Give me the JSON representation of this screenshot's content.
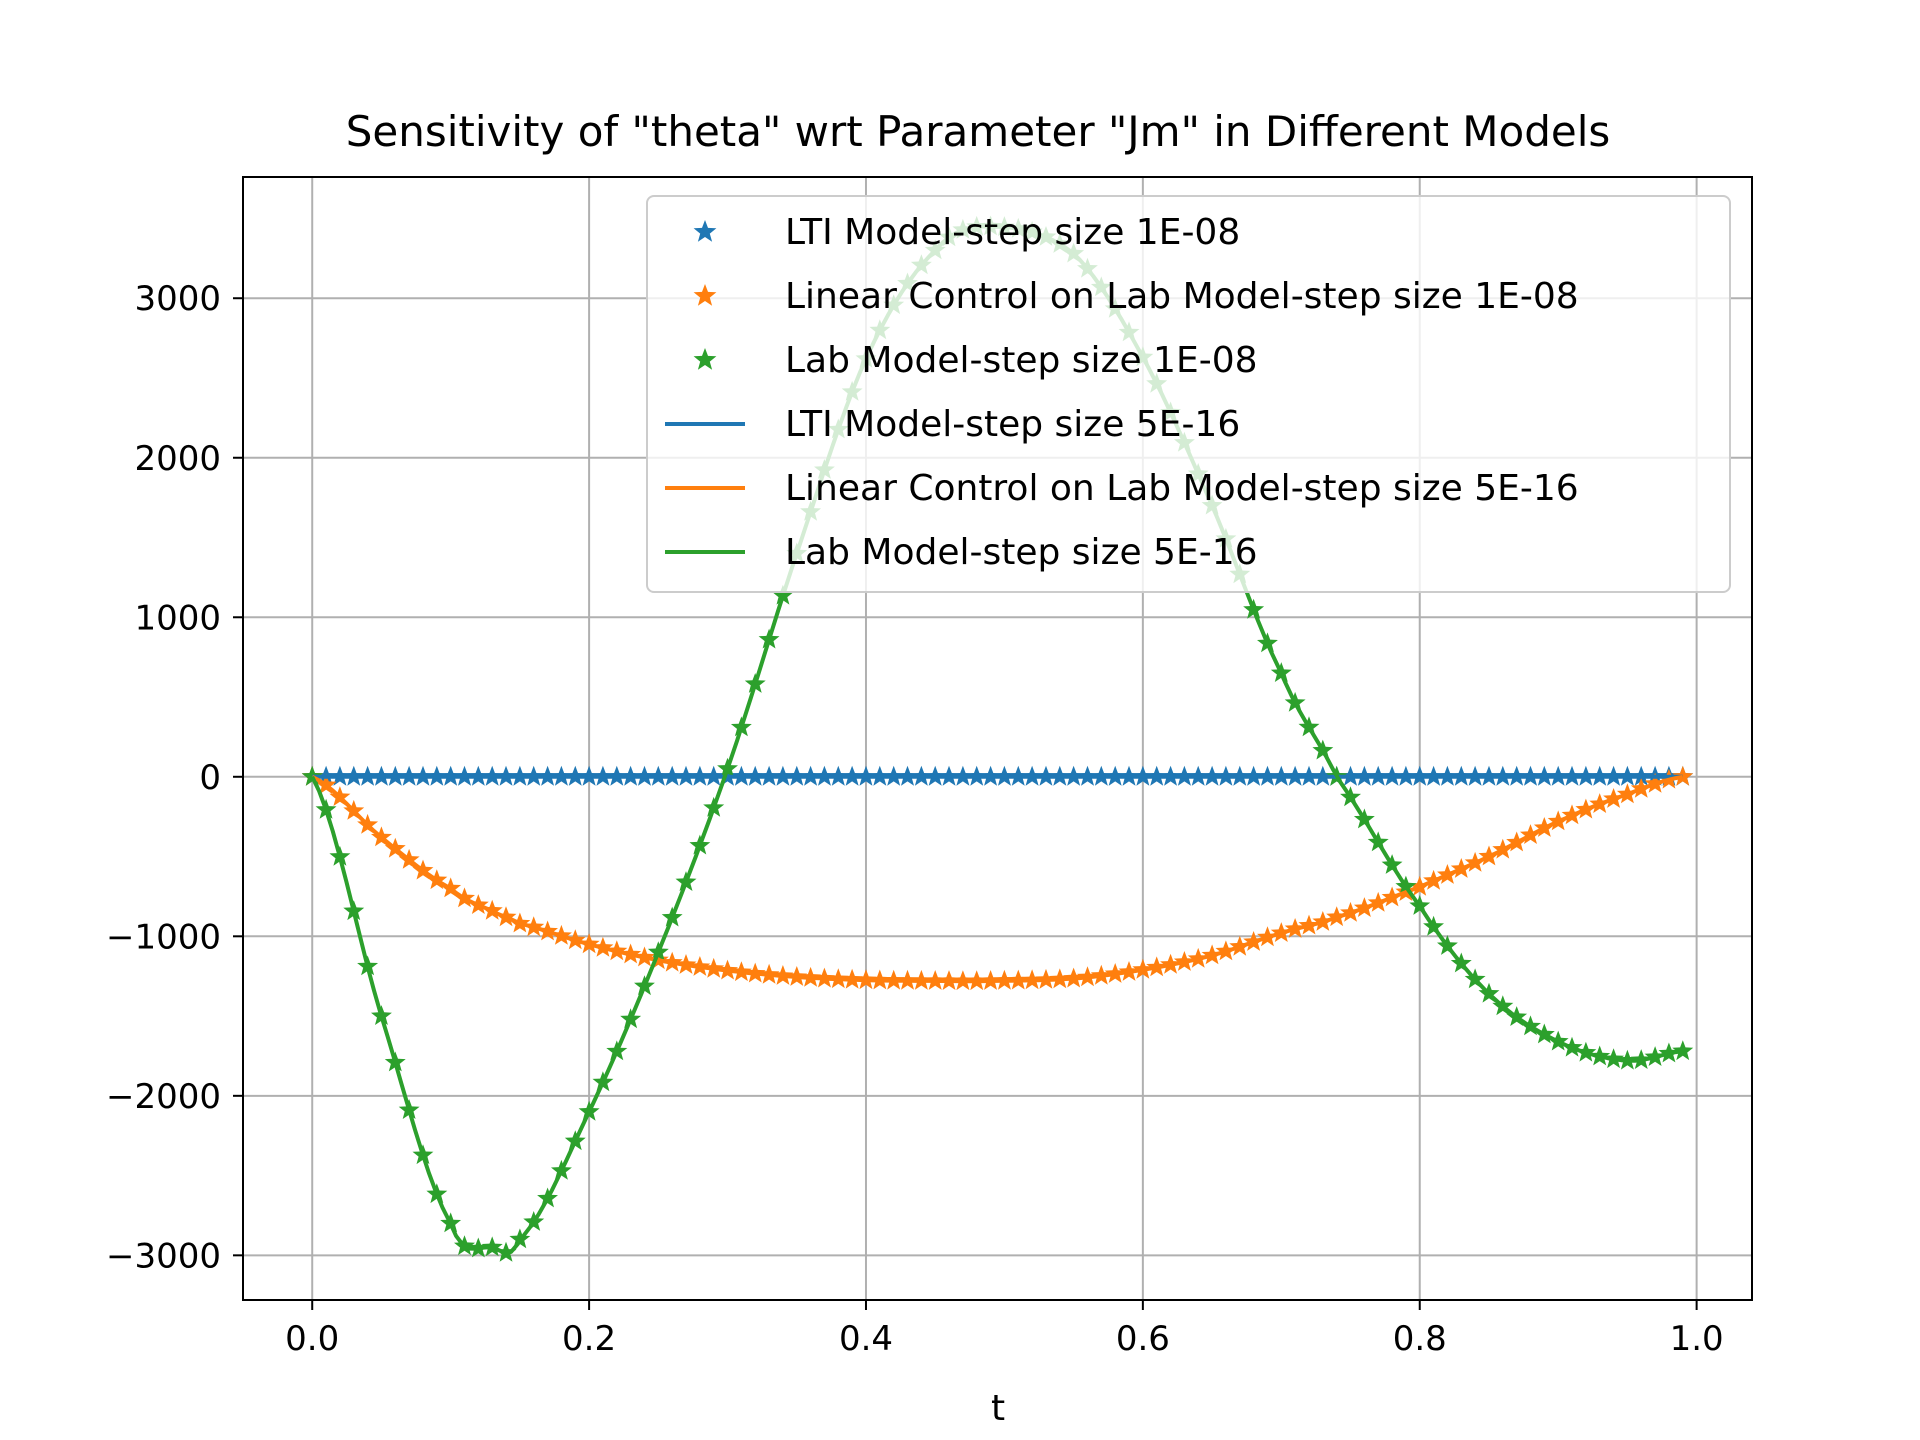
{
  "chart_data": {
    "type": "line",
    "title": "Sensitivity of \"theta\" wrt Parameter \"Jm\" in Different Models",
    "xlabel": "t",
    "ylabel": "",
    "xlim": [
      -0.05,
      1.04
    ],
    "ylim": [
      -3280,
      3760
    ],
    "grid": true,
    "legend_position": "top-right",
    "x_ticks": [
      0.0,
      0.2,
      0.4,
      0.6,
      0.8,
      1.0
    ],
    "x_tick_labels": [
      "0.0",
      "0.2",
      "0.4",
      "0.6",
      "0.8",
      "1.0"
    ],
    "y_ticks": [
      3000,
      2000,
      1000,
      0,
      -1000,
      -2000,
      -3000
    ],
    "y_tick_labels": [
      "3000",
      "2000",
      "1000",
      "0",
      "−1000",
      "−2000",
      "−3000"
    ],
    "x": [
      0.0,
      0.05,
      0.1,
      0.13,
      0.15,
      0.2,
      0.25,
      0.3,
      0.35,
      0.4,
      0.45,
      0.49,
      0.55,
      0.6,
      0.65,
      0.7,
      0.74,
      0.8,
      0.85,
      0.9,
      0.95,
      0.99
    ],
    "series": [
      {
        "name": "LTI Model-step size 1E-08",
        "style": "markers",
        "color": "#1f77b4",
        "values": [
          0,
          0,
          0,
          0,
          0,
          0,
          0,
          0,
          0,
          0,
          0,
          0,
          0,
          0,
          0,
          0,
          0,
          0,
          0,
          0,
          0,
          0
        ]
      },
      {
        "name": "Linear Control on Lab Model-step size 1E-08",
        "style": "markers",
        "color": "#ff7f0e",
        "values": [
          0,
          -380,
          -700,
          -840,
          -920,
          -1050,
          -1150,
          -1215,
          -1255,
          -1275,
          -1280,
          -1280,
          -1265,
          -1210,
          -1120,
          -980,
          -880,
          -690,
          -500,
          -280,
          -110,
          0
        ]
      },
      {
        "name": "Lab Model-step size 1E-08",
        "style": "markers",
        "color": "#2ca02c",
        "values": [
          0,
          -1500,
          -2800,
          -2950,
          -2900,
          -2100,
          -1100,
          50,
          1400,
          2620,
          3300,
          3450,
          3280,
          2630,
          1700,
          650,
          0,
          -810,
          -1360,
          -1660,
          -1780,
          -1720
        ]
      },
      {
        "name": "LTI Model-step size 5E-16",
        "style": "line",
        "color": "#1f77b4",
        "values": [
          0,
          0,
          0,
          0,
          0,
          0,
          0,
          0,
          0,
          0,
          0,
          0,
          0,
          0,
          0,
          0,
          0,
          0,
          0,
          0,
          0,
          0
        ]
      },
      {
        "name": "Linear Control on Lab Model-step size 5E-16",
        "style": "line",
        "color": "#ff7f0e",
        "values": [
          0,
          -380,
          -700,
          -840,
          -920,
          -1050,
          -1150,
          -1215,
          -1255,
          -1275,
          -1280,
          -1280,
          -1265,
          -1210,
          -1120,
          -980,
          -880,
          -690,
          -500,
          -280,
          -110,
          0
        ]
      },
      {
        "name": "Lab Model-step size 5E-16",
        "style": "line",
        "color": "#2ca02c",
        "values": [
          0,
          -1500,
          -2800,
          -2950,
          -2900,
          -2100,
          -1100,
          50,
          1400,
          2620,
          3300,
          3450,
          3280,
          2630,
          1700,
          650,
          0,
          -810,
          -1360,
          -1660,
          -1780,
          -1720
        ]
      }
    ]
  }
}
